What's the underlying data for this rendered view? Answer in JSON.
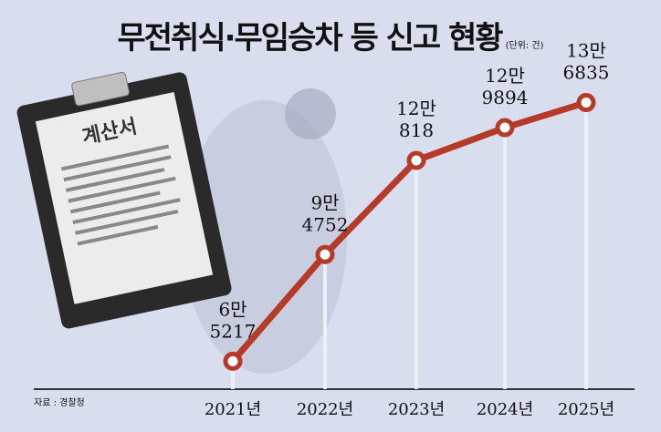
{
  "chart_data": {
    "type": "line",
    "title": "무전취식·무임승차 등 신고 현황",
    "unit": "(단위: 건)",
    "source": "자료 : 경찰청",
    "categories": [
      "2021년",
      "2022년",
      "2023년",
      "2024년",
      "2025년"
    ],
    "values": [
      65217,
      94752,
      120818,
      129894,
      136835
    ],
    "data_labels": [
      [
        "6만",
        "5217"
      ],
      [
        "9만",
        "4752"
      ],
      [
        "12만",
        "818"
      ],
      [
        "12만",
        "9894"
      ],
      [
        "13만",
        "6835"
      ]
    ],
    "ylim": [
      60000,
      140000
    ],
    "grid": false,
    "line_color": "#b53a28",
    "background_color": "#d9deef",
    "illustration": {
      "clipboard_text": "계산서",
      "subject": "running-man"
    }
  }
}
